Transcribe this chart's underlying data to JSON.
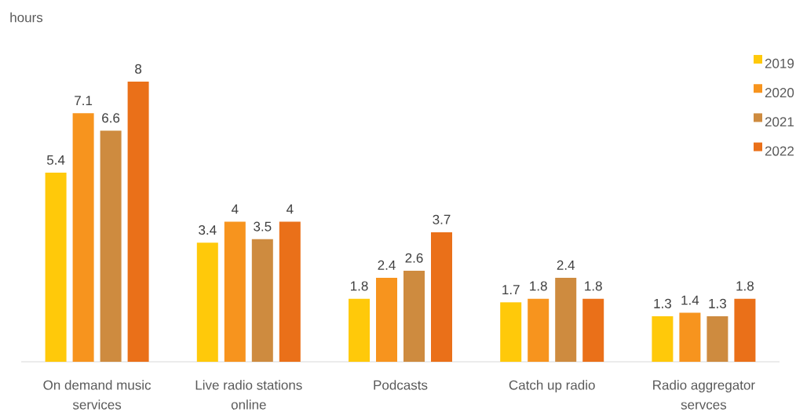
{
  "chart_data": {
    "type": "bar",
    "ylabel": "hours",
    "categories": [
      "On demand music services",
      "Live radio stations online",
      "Podcasts",
      "Catch up radio",
      "Radio aggregator servces"
    ],
    "series": [
      {
        "name": "2019",
        "color": "#ffc90a",
        "values": [
          5.4,
          3.4,
          1.8,
          1.7,
          1.3
        ]
      },
      {
        "name": "2020",
        "color": "#f7941e",
        "values": [
          7.1,
          4,
          2.4,
          1.8,
          1.4
        ]
      },
      {
        "name": "2021",
        "color": "#ce8b3f",
        "values": [
          6.6,
          3.5,
          2.6,
          2.4,
          1.3
        ]
      },
      {
        "name": "2022",
        "color": "#ea7019",
        "values": [
          8,
          4,
          3.7,
          1.8,
          1.8
        ]
      }
    ],
    "data_labels": true,
    "legend": "top right",
    "tick_labels": "x"
  }
}
